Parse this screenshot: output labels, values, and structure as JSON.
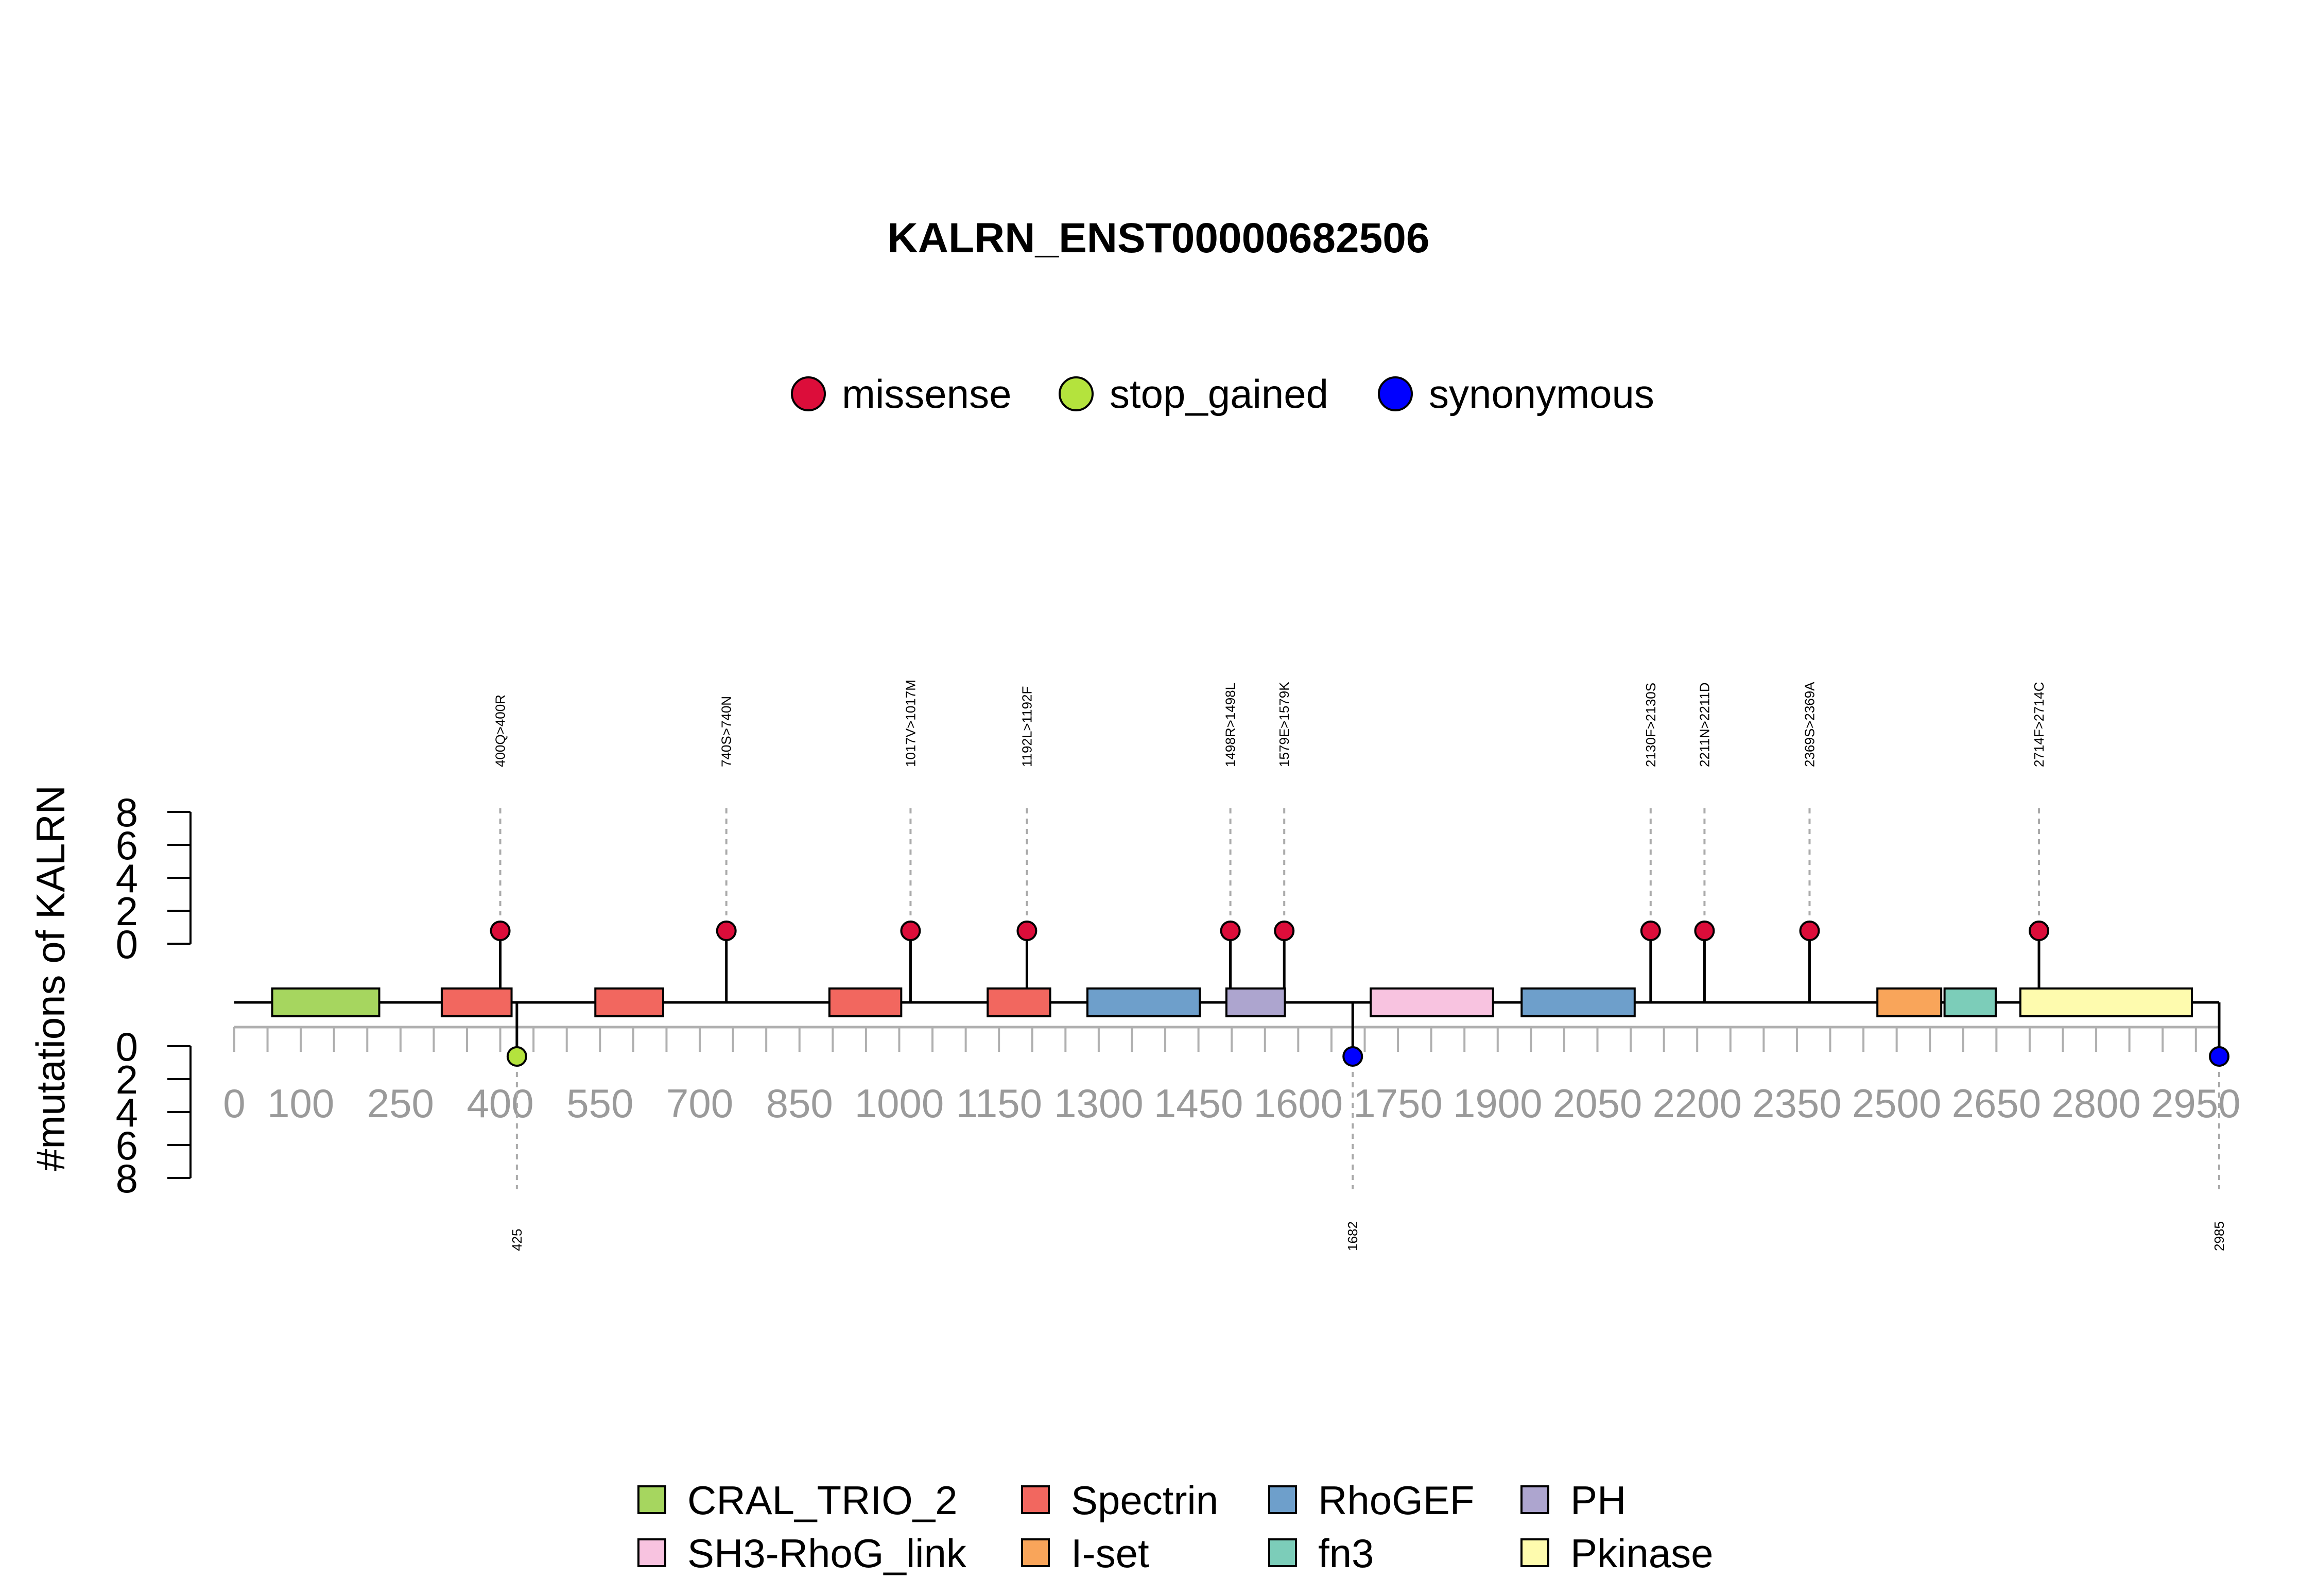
{
  "chart_data": {
    "type": "lollipop",
    "title": "KALRN_ENST00000682506",
    "ylabel": "#mutations of KALRN",
    "protein_length": 2985,
    "xlim": [
      0,
      2985
    ],
    "x_ticks": [
      0,
      50,
      100,
      150,
      200,
      250,
      300,
      350,
      400,
      450,
      500,
      550,
      600,
      650,
      700,
      750,
      800,
      850,
      900,
      950,
      1000,
      1050,
      1100,
      1150,
      1200,
      1250,
      1300,
      1350,
      1400,
      1450,
      1500,
      1550,
      1600,
      1650,
      1700,
      1750,
      1800,
      1850,
      1900,
      1950,
      2000,
      2050,
      2100,
      2150,
      2200,
      2250,
      2300,
      2350,
      2400,
      2450,
      2500,
      2550,
      2600,
      2650,
      2700,
      2750,
      2800,
      2850,
      2900,
      2950
    ],
    "x_tick_labels": [
      "0",
      "100",
      "250",
      "400",
      "550",
      "700",
      "850",
      "1000",
      "1150",
      "1300",
      "1450",
      "1600",
      "1750",
      "1900",
      "2050",
      "2200",
      "2350",
      "2500",
      "2650",
      "2800",
      "2950"
    ],
    "x_tick_label_positions": [
      0,
      100,
      250,
      400,
      550,
      700,
      850,
      1000,
      1150,
      1300,
      1450,
      1600,
      1750,
      1900,
      2050,
      2200,
      2350,
      2500,
      2650,
      2800,
      2950
    ],
    "y_ticks_upper": [
      "0",
      "2",
      "4",
      "6",
      "8"
    ],
    "y_ticks_lower": [
      "0",
      "2",
      "4",
      "6",
      "8"
    ],
    "ylim": [
      0,
      8
    ],
    "legend_mutations": [
      {
        "name": "missense",
        "color": "#DC0D3A"
      },
      {
        "name": "stop_gained",
        "color": "#B4E33D"
      },
      {
        "name": "synonymous",
        "color": "#0000FF"
      }
    ],
    "domains": [
      {
        "name": "CRAL_TRIO_2",
        "start": 57,
        "end": 218,
        "color": "#A6D65F"
      },
      {
        "name": "Spectrin",
        "start": 312,
        "end": 417,
        "color": "#F2675F"
      },
      {
        "name": "Spectrin",
        "start": 543,
        "end": 645,
        "color": "#F2675F"
      },
      {
        "name": "Spectrin",
        "start": 895,
        "end": 1003,
        "color": "#F2675F"
      },
      {
        "name": "Spectrin",
        "start": 1133,
        "end": 1227,
        "color": "#F2675F"
      },
      {
        "name": "RhoGEF",
        "start": 1283,
        "end": 1452,
        "color": "#6E9FCB"
      },
      {
        "name": "PH",
        "start": 1492,
        "end": 1580,
        "color": "#ADA5CF"
      },
      {
        "name": "SH3-RhoG_link",
        "start": 1709,
        "end": 1893,
        "color": "#F8C3E0"
      },
      {
        "name": "RhoGEF",
        "start": 1936,
        "end": 2106,
        "color": "#6E9FCB"
      },
      {
        "name": "I-set",
        "start": 2471,
        "end": 2567,
        "color": "#F9A55A"
      },
      {
        "name": "fn3",
        "start": 2572,
        "end": 2649,
        "color": "#7CCDB9"
      },
      {
        "name": "Pkinase",
        "start": 2686,
        "end": 2944,
        "color": "#FEFBAE"
      }
    ],
    "domain_legend": [
      {
        "name": "CRAL_TRIO_2",
        "color": "#A6D65F"
      },
      {
        "name": "Spectrin",
        "color": "#F2675F"
      },
      {
        "name": "RhoGEF",
        "color": "#6E9FCB"
      },
      {
        "name": "PH",
        "color": "#ADA5CF"
      },
      {
        "name": "SH3-RhoG_link",
        "color": "#F8C3E0"
      },
      {
        "name": "I-set",
        "color": "#F9A55A"
      },
      {
        "name": "fn3",
        "color": "#7CCDB9"
      },
      {
        "name": "Pkinase",
        "color": "#FEFBAE"
      }
    ],
    "mutations_upper": [
      {
        "label": "400Q>400R",
        "position": 400,
        "count": 1,
        "type": "missense"
      },
      {
        "label": "740S>740N",
        "position": 740,
        "count": 1,
        "type": "missense"
      },
      {
        "label": "1017V>1017M",
        "position": 1017,
        "count": 1,
        "type": "missense"
      },
      {
        "label": "1192L>1192F",
        "position": 1192,
        "count": 1,
        "type": "missense"
      },
      {
        "label": "1498R>1498L",
        "position": 1498,
        "count": 1,
        "type": "missense"
      },
      {
        "label": "1579E>1579K",
        "position": 1579,
        "count": 1,
        "type": "missense"
      },
      {
        "label": "2130F>2130S",
        "position": 2130,
        "count": 1,
        "type": "missense"
      },
      {
        "label": "2211N>2211D",
        "position": 2211,
        "count": 1,
        "type": "missense"
      },
      {
        "label": "2369S>2369A",
        "position": 2369,
        "count": 1,
        "type": "missense"
      },
      {
        "label": "2714F>2714C",
        "position": 2714,
        "count": 1,
        "type": "missense"
      }
    ],
    "mutations_lower": [
      {
        "label": "425",
        "position": 425,
        "count": 1,
        "type": "stop_gained"
      },
      {
        "label": "1682",
        "position": 1682,
        "count": 1,
        "type": "synonymous"
      },
      {
        "label": "2985",
        "position": 2985,
        "count": 1,
        "type": "synonymous"
      }
    ]
  }
}
